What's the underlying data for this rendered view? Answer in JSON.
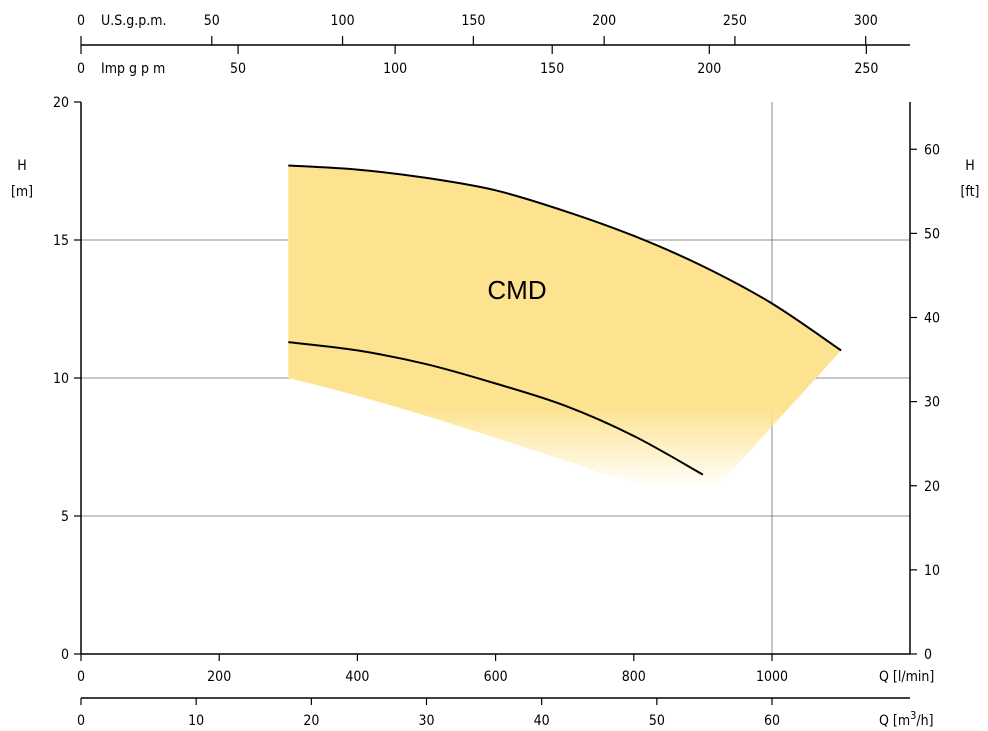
{
  "chart_data": {
    "type": "area",
    "area_label": "CMD",
    "fill_color": "#fde38f",
    "x_axis": {
      "title": "Q [l/min]",
      "ticks": [
        0,
        200,
        400,
        600,
        800,
        1000
      ],
      "range": [
        0,
        1200
      ]
    },
    "x_axis_m3h": {
      "title_prefix": "Q [m",
      "title_sup": "3",
      "title_suffix": "/h]",
      "ticks": [
        0,
        10,
        20,
        30,
        40,
        50,
        60
      ]
    },
    "top_axis_usgpm": {
      "title": "U.S.g.p.m.",
      "zero_label": "0",
      "ticks": [
        50,
        100,
        150,
        200,
        250,
        300
      ]
    },
    "top_axis_impgpm": {
      "title": "Imp g p m",
      "zero_label": "0",
      "ticks": [
        50,
        100,
        150,
        200,
        250
      ]
    },
    "y_axis_left": {
      "title_top": "H",
      "title_bottom": "[m]",
      "ticks": [
        0,
        5,
        10,
        15,
        20
      ],
      "range": [
        0,
        20
      ]
    },
    "y_axis_right": {
      "title_top": "H",
      "title_bottom": "[ft]",
      "ticks": [
        0,
        10,
        20,
        30,
        40,
        50,
        60
      ]
    },
    "grid_x": [
      1000
    ],
    "grid_y": [
      5,
      10,
      15
    ],
    "series": [
      {
        "role": "upper-curve",
        "x": [
          300,
          400,
          500,
          600,
          700,
          800,
          900,
          1000,
          1100
        ],
        "y": [
          17.7,
          17.55,
          17.25,
          16.8,
          16.05,
          15.15,
          14.05,
          12.7,
          11.0
        ]
      },
      {
        "role": "lower-curve",
        "x": [
          300,
          400,
          500,
          600,
          700,
          800,
          900
        ],
        "y": [
          11.3,
          11.0,
          10.5,
          9.8,
          9.0,
          7.9,
          6.5
        ]
      }
    ]
  }
}
